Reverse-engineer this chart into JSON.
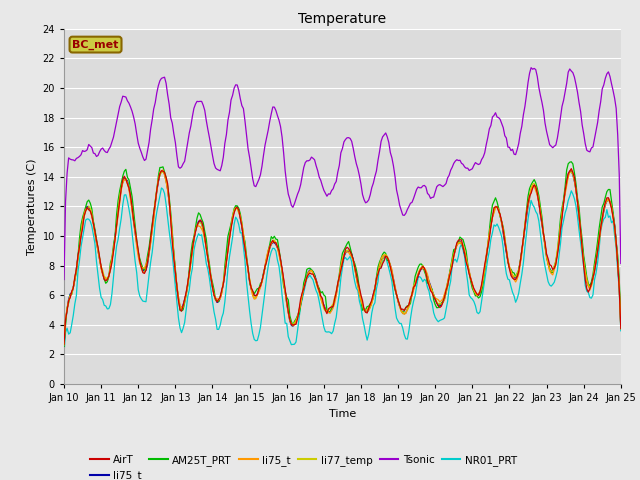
{
  "title": "Temperature",
  "xlabel": "Time",
  "ylabel": "Temperatures (C)",
  "ylim": [
    0,
    24
  ],
  "yticks": [
    0,
    2,
    4,
    6,
    8,
    10,
    12,
    14,
    16,
    18,
    20,
    22,
    24
  ],
  "fig_bg": "#e8e8e8",
  "plot_bg": "#dcdcdc",
  "colors": {
    "AirT": "#cc0000",
    "li75_t": "#0000aa",
    "AM25T_PRT": "#00bb00",
    "li75_t2": "#ff9900",
    "li77_temp": "#cccc00",
    "Tsonic": "#9900cc",
    "NR01_PRT": "#00cccc"
  },
  "annotation_text": "BC_met",
  "annotation_fg": "#990000",
  "annotation_bg": "#cccc44",
  "annotation_border": "#886600",
  "lw": 0.9,
  "tick_fontsize": 7,
  "title_fontsize": 10,
  "label_fontsize": 8,
  "legend_fontsize": 7.5
}
